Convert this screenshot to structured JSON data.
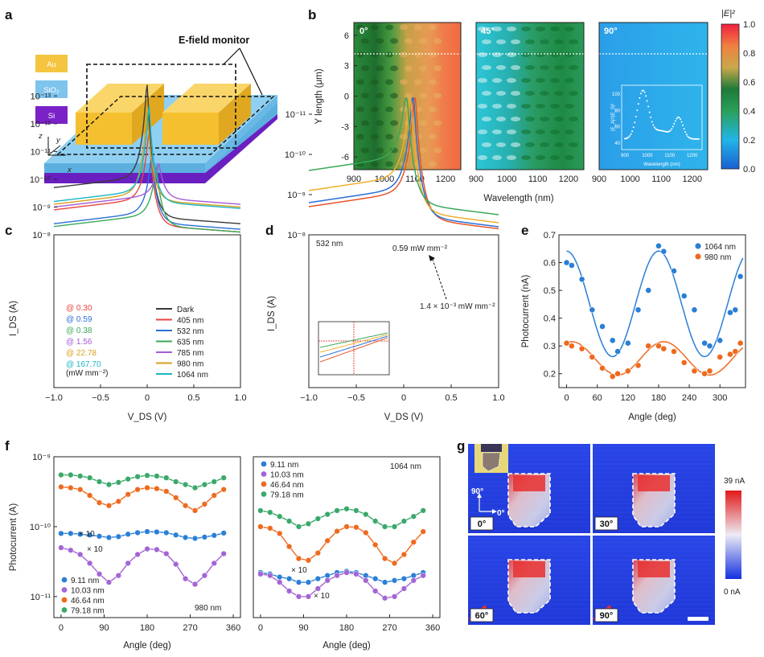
{
  "panels": {
    "a": {
      "letter": "a",
      "monitor_label": "E-field monitor",
      "materials": [
        {
          "name": "Au",
          "color": "#f5c542",
          "text_color": "#ffffff"
        },
        {
          "name": "SiO₂",
          "color": "#7fc4ec",
          "text_color": "#ffffff"
        },
        {
          "name": "Si",
          "color": "#7a22c8",
          "text_color": "#ffffff"
        }
      ],
      "axes": {
        "z": "z",
        "y": "y",
        "x": "x"
      }
    },
    "b": {
      "letter": "b",
      "ylabel": "Y length (μm)",
      "xlabel": "Wavelength (nm)",
      "colorbar_label": "|E|²",
      "colorbar_ticks": [
        "1.0",
        "0.8",
        "0.6",
        "0.4",
        "0.2",
        "0.0"
      ],
      "maps": [
        {
          "label": "0°"
        },
        {
          "label": "45°"
        },
        {
          "label": "90°"
        }
      ],
      "yticks": [
        6,
        3,
        0,
        -3,
        -6
      ],
      "xticks": [
        900,
        1000,
        1100,
        1200
      ],
      "inset": {
        "ylabel": "|E_A|²/|E_0|²",
        "xlabel": "Wavelength (nm)",
        "yticks": [
          40,
          60,
          80,
          100
        ],
        "xticks": [
          900,
          1000,
          1100,
          1200
        ]
      }
    },
    "c": {
      "letter": "c",
      "xlabel": "V_DS (V)",
      "ylabel": "I_DS (A)",
      "yticks": [
        "10⁻⁸",
        "10⁻⁹",
        "10⁻¹⁰",
        "10⁻¹¹",
        "10⁻¹²",
        "10⁻¹³"
      ],
      "xticks": [
        "−1.0",
        "−0.5",
        "0",
        "0.5",
        "1.0"
      ],
      "powers": [
        {
          "text": "@ 0.30",
          "color": "#e8453c"
        },
        {
          "text": "@ 0.59",
          "color": "#2a6fd6"
        },
        {
          "text": "@ 0.38",
          "color": "#3aa85a"
        },
        {
          "text": "@ 1.56",
          "color": "#a35bd6"
        },
        {
          "text": "@ 22.78",
          "color": "#d7a21a"
        },
        {
          "text": "@ 167.70",
          "color": "#18b6c4"
        }
      ],
      "power_unit": "(mW mm⁻²)",
      "legend": [
        {
          "name": "Dark",
          "color": "#3a3a3a"
        },
        {
          "name": "405 nm",
          "color": "#e8453c"
        },
        {
          "name": "532 nm",
          "color": "#2a6fd6"
        },
        {
          "name": "635 nm",
          "color": "#3aa85a"
        },
        {
          "name": "785 nm",
          "color": "#a35bd6"
        },
        {
          "name": "980 nm",
          "color": "#d7a21a"
        },
        {
          "name": "1064 nm",
          "color": "#18b6c4"
        }
      ]
    },
    "d": {
      "letter": "d",
      "xlabel": "V_DS (V)",
      "ylabel": "I_DS (A)",
      "wavelength": "532 nm",
      "high_power": "0.59 mW mm⁻²",
      "low_power": "1.4 × 10⁻³ mW mm⁻²",
      "yticks": [
        "10⁻⁸",
        "10⁻⁹",
        "10⁻¹⁰",
        "10⁻¹¹"
      ],
      "xticks": [
        "−1.0",
        "−0.5",
        "0",
        "0.5",
        "1.0"
      ],
      "series_colors": [
        "#e8552a",
        "#2a6fd6",
        "#f0b02a",
        "#3aa85a"
      ]
    },
    "e": {
      "letter": "e",
      "xlabel": "Angle (deg)",
      "ylabel": "Photocurrent (nA)",
      "yticks": [
        "0.7",
        "0.6",
        "0.5",
        "0.4",
        "0.3",
        "0.2"
      ],
      "xticks": [
        "0",
        "60",
        "120",
        "180",
        "240",
        "300"
      ],
      "legend": [
        {
          "name": "1064 nm",
          "color": "#2a7fd6"
        },
        {
          "name": "980 nm",
          "color": "#ee6a1f"
        }
      ]
    },
    "f": {
      "letter": "f",
      "xlabel": "Angle (deg)",
      "ylabel": "Photocurrent (A)",
      "yticks": [
        "10⁻⁹",
        "10⁻¹⁰",
        "10⁻¹¹"
      ],
      "xticks": [
        "0",
        "90",
        "180",
        "270",
        "360"
      ],
      "left_wavelength": "980 nm",
      "right_wavelength": "1064 nm",
      "x10": "× 10",
      "legend": [
        {
          "name": "9.11 nm",
          "color": "#2a7fd6"
        },
        {
          "name": "10.03 nm",
          "color": "#a365d6"
        },
        {
          "name": "46.64 nm",
          "color": "#ee6a1f"
        },
        {
          "name": "79.18 nm",
          "color": "#3aa86a"
        }
      ]
    },
    "g": {
      "letter": "g",
      "maps": [
        {
          "label": "0°"
        },
        {
          "label": "30°"
        },
        {
          "label": "60°"
        },
        {
          "label": "90°"
        }
      ],
      "colorbar_max": "39 nA",
      "colorbar_min": "0 nA",
      "axis_90": "90°",
      "axis_0": "0°"
    }
  },
  "chart_data": [
    {
      "panel": "e",
      "type": "scatter",
      "xlabel": "Angle (deg)",
      "ylabel": "Photocurrent (nA)",
      "xlim": [
        -15,
        350
      ],
      "ylim": [
        0.15,
        0.7
      ],
      "series": [
        {
          "name": "1064 nm",
          "x": [
            0,
            10,
            30,
            50,
            70,
            90,
            100,
            120,
            140,
            160,
            180,
            190,
            210,
            230,
            250,
            270,
            280,
            300,
            320,
            330,
            340
          ],
          "y": [
            0.6,
            0.59,
            0.54,
            0.43,
            0.37,
            0.32,
            0.28,
            0.31,
            0.43,
            0.5,
            0.66,
            0.64,
            0.57,
            0.48,
            0.43,
            0.31,
            0.3,
            0.32,
            0.42,
            0.43,
            0.55
          ]
        },
        {
          "name": "980 nm",
          "x": [
            0,
            10,
            30,
            50,
            70,
            90,
            100,
            120,
            140,
            160,
            180,
            190,
            210,
            230,
            250,
            270,
            280,
            300,
            320,
            330,
            340
          ],
          "y": [
            0.31,
            0.3,
            0.29,
            0.26,
            0.22,
            0.19,
            0.2,
            0.21,
            0.23,
            0.3,
            0.3,
            0.29,
            0.28,
            0.24,
            0.21,
            0.2,
            0.21,
            0.26,
            0.27,
            0.28,
            0.31
          ]
        }
      ]
    },
    {
      "panel": "f-left",
      "type": "scatter",
      "xlabel": "Angle (deg)",
      "ylabel": "Photocurrent (A)",
      "yscale": "log",
      "xlim": [
        -15,
        375
      ],
      "ylim": [
        5e-12,
        1e-09
      ],
      "series": [
        {
          "name": "79.18 nm",
          "x": [
            0,
            20,
            40,
            60,
            80,
            100,
            120,
            140,
            160,
            180,
            200,
            220,
            240,
            260,
            280,
            300,
            320,
            340
          ],
          "y": [
            5.5e-10,
            5.5e-10,
            5.3e-10,
            5e-10,
            4.4e-10,
            4e-10,
            4.3e-10,
            4.8e-10,
            5.2e-10,
            5.4e-10,
            5.3e-10,
            5e-10,
            4.4e-10,
            4e-10,
            3.6e-10,
            4e-10,
            4.4e-10,
            5e-10
          ]
        },
        {
          "name": "46.64 nm",
          "x": [
            0,
            20,
            40,
            60,
            80,
            100,
            120,
            140,
            160,
            180,
            200,
            220,
            240,
            260,
            280,
            300,
            320,
            340
          ],
          "y": [
            3.7e-10,
            3.6e-10,
            3.4e-10,
            2.8e-10,
            2.2e-10,
            2e-10,
            2.3e-10,
            2.9e-10,
            3.4e-10,
            3.6e-10,
            3.5e-10,
            3.2e-10,
            2.6e-10,
            2e-10,
            1.7e-10,
            2.1e-10,
            2.8e-10,
            3.4e-10
          ]
        },
        {
          "name": "9.11 nm",
          "x": [
            0,
            20,
            40,
            60,
            80,
            100,
            120,
            140,
            160,
            180,
            200,
            220,
            240,
            260,
            280,
            300,
            320,
            340
          ],
          "y": [
            8e-11,
            8e-11,
            7.8e-11,
            7.6e-11,
            7.3e-11,
            7e-11,
            7.2e-11,
            7.8e-11,
            8.2e-11,
            8.5e-11,
            8.4e-11,
            8.2e-11,
            7.6e-11,
            7e-11,
            6.8e-11,
            7.1e-11,
            7.5e-11,
            8.1e-11
          ]
        },
        {
          "name": "10.03 nm",
          "x": [
            0,
            20,
            40,
            60,
            80,
            100,
            120,
            140,
            160,
            180,
            200,
            220,
            240,
            260,
            280,
            300,
            320,
            340
          ],
          "y": [
            5e-11,
            4.6e-11,
            4e-11,
            3e-11,
            2.1e-11,
            1.6e-11,
            2e-11,
            3e-11,
            4e-11,
            4.8e-11,
            4.7e-11,
            4.1e-11,
            2.9e-11,
            1.8e-11,
            1.5e-11,
            2e-11,
            3e-11,
            4.1e-11
          ]
        }
      ]
    },
    {
      "panel": "f-right",
      "type": "scatter",
      "xlabel": "Angle (deg)",
      "ylabel": "Photocurrent (A)",
      "yscale": "log",
      "xlim": [
        -15,
        375
      ],
      "ylim": [
        5e-12,
        1e-09
      ],
      "series": [
        {
          "name": "79.18 nm",
          "x": [
            0,
            20,
            40,
            60,
            80,
            100,
            120,
            140,
            160,
            180,
            200,
            220,
            240,
            260,
            280,
            300,
            320,
            340
          ],
          "y": [
            1.7e-10,
            1.6e-10,
            1.4e-10,
            1.2e-10,
            1e-10,
            1.1e-10,
            1.3e-10,
            1.5e-10,
            1.7e-10,
            1.8e-10,
            1.7e-10,
            1.5e-10,
            1.2e-10,
            1e-10,
            1e-10,
            1.2e-10,
            1.4e-10,
            1.7e-10
          ]
        },
        {
          "name": "46.64 nm",
          "x": [
            0,
            20,
            40,
            60,
            80,
            100,
            120,
            140,
            160,
            180,
            200,
            220,
            240,
            260,
            280,
            300,
            320,
            340
          ],
          "y": [
            1e-10,
            9.5e-11,
            8e-11,
            5.2e-11,
            3.5e-11,
            3.3e-11,
            4.2e-11,
            6.3e-11,
            8.6e-11,
            1e-10,
            9.8e-11,
            8.2e-11,
            5.5e-11,
            3.5e-11,
            3e-11,
            4e-11,
            6e-11,
            8.5e-11
          ]
        },
        {
          "name": "9.11 nm",
          "x": [
            0,
            20,
            40,
            60,
            80,
            100,
            120,
            140,
            160,
            180,
            200,
            220,
            240,
            260,
            280,
            300,
            320,
            340
          ],
          "y": [
            2.2e-11,
            2.1e-11,
            1.9e-11,
            1.8e-11,
            1.6e-11,
            1.6e-11,
            1.8e-11,
            2e-11,
            2.2e-11,
            2.3e-11,
            2.2e-11,
            2e-11,
            1.8e-11,
            1.6e-11,
            1.7e-11,
            1.8e-11,
            2e-11,
            2.2e-11
          ]
        },
        {
          "name": "10.03 nm",
          "x": [
            0,
            20,
            40,
            60,
            80,
            100,
            120,
            140,
            160,
            180,
            200,
            220,
            240,
            260,
            280,
            300,
            320,
            340
          ],
          "y": [
            2.1e-11,
            2e-11,
            1.6e-11,
            1.2e-11,
            1e-11,
            1e-11,
            1.3e-11,
            1.7e-11,
            2e-11,
            2.2e-11,
            2.1e-11,
            1.7e-11,
            1.2e-11,
            9.5e-12,
            1e-11,
            1.3e-11,
            1.7e-11,
            2e-11
          ]
        }
      ]
    }
  ]
}
